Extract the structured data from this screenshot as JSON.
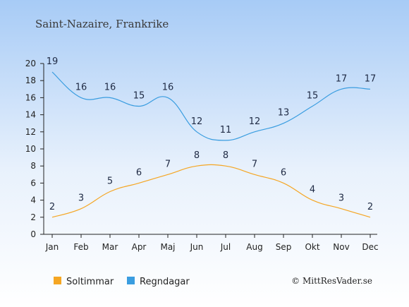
{
  "chart_data": {
    "type": "line",
    "title": "Saint-Nazaire, Frankrike",
    "categories": [
      "Jan",
      "Feb",
      "Mar",
      "Apr",
      "Maj",
      "Jun",
      "Jul",
      "Aug",
      "Sep",
      "Okt",
      "Nov",
      "Dec"
    ],
    "series": [
      {
        "name": "Soltimmar",
        "color": "#f5a623",
        "values": [
          2,
          3,
          5,
          6,
          7,
          8,
          8,
          7,
          6,
          4,
          3,
          2
        ]
      },
      {
        "name": "Regndagar",
        "color": "#3a9de0",
        "values": [
          19,
          16,
          16,
          15,
          16,
          12,
          11,
          12,
          13,
          15,
          17,
          17
        ]
      }
    ],
    "ylim": [
      0,
      20
    ],
    "yticks": [
      "0",
      "2",
      "4",
      "6",
      "8",
      "10",
      "12",
      "14",
      "16",
      "18",
      "20"
    ],
    "legend_position": "bottom-left",
    "grid": false,
    "credit": "© MittResVader.se",
    "background_top": "#a7cbf6",
    "background_bottom": "#ffffff"
  }
}
